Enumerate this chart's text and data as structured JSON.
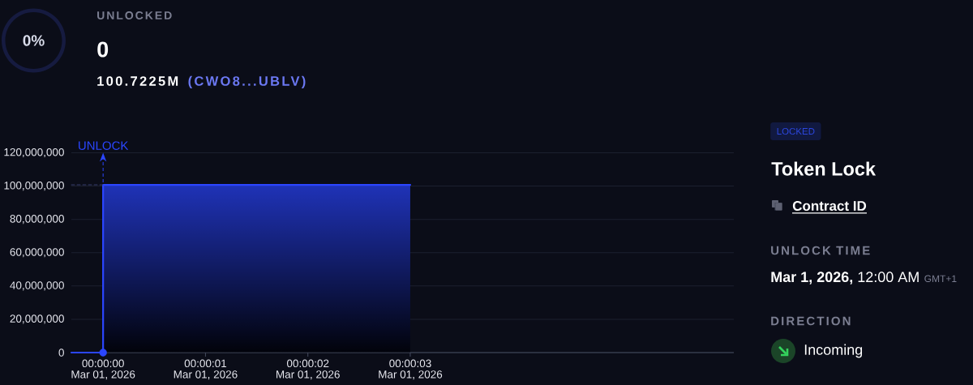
{
  "chart_data": [
    {
      "type": "other",
      "title": "UNLOCKED",
      "annotations": [
        "0%",
        "0",
        "100.7225M",
        "(CWO8...UBLV)"
      ]
    },
    {
      "type": "area",
      "series": [
        {
          "type": "line",
          "color": "#2b46ff",
          "x": [
            "2026-02-28T23:59:59.69",
            "2026-03-01T00:00:00"
          ],
          "values": [
            0,
            0
          ]
        },
        {
          "type": "area",
          "color": "#2b46ff",
          "x": [
            "2026-03-01T00:00:00",
            "2026-03-01T00:00:00",
            "2026-03-01T00:00:03"
          ],
          "values": [
            0,
            100722500,
            100722500
          ]
        },
        {
          "type": "line",
          "color": "#363d6c",
          "line_style": "dashed",
          "x": [
            "2026-02-28T23:59:59.69",
            "2026-03-01T00:00:00"
          ],
          "values": [
            100722500,
            100722500
          ]
        },
        {
          "type": "scatter",
          "color": "#2b46ff",
          "marker": "circle",
          "x": [
            "2026-03-01T00:00:00"
          ],
          "values": [
            0
          ]
        }
      ],
      "xlim": [
        "2026-02-28T23:59:59.69",
        "2026-03-01T00:00:06.16"
      ],
      "ylim": [
        0,
        120000000
      ],
      "xticks": [
        {
          "value": "2026-03-01T00:00:00",
          "label": "00:00:00\nMar 01, 2026"
        },
        {
          "value": "2026-03-01T00:00:01",
          "label": "00:00:01\nMar 01, 2026"
        },
        {
          "value": "2026-03-01T00:00:02",
          "label": "00:00:02\nMar 01, 2026"
        },
        {
          "value": "2026-03-01T00:00:03",
          "label": "00:00:03\nMar 01, 2026"
        }
      ],
      "yticks": [
        0,
        {
          "value": 20000000,
          "label": "20,000,000"
        },
        {
          "value": 40000000,
          "label": "40,000,000"
        },
        {
          "value": 60000000,
          "label": "60,000,000"
        },
        {
          "value": 80000000,
          "label": "80,000,000"
        },
        {
          "value": 100000000,
          "label": "100,000,000"
        },
        {
          "value": 120000000,
          "label": "120,000,000"
        }
      ],
      "grid": "y",
      "ref_lines": [
        {
          "axis": "x",
          "value": "2026-03-01T00:00:00",
          "label": "UNLOCK",
          "color": "#2b46ff",
          "line_style": "dashed"
        }
      ]
    },
    {
      "type": "other",
      "title": "Token Lock",
      "annotations": [
        "LOCKED",
        "Contract ID",
        "UNLOCK TIME",
        "**Mar 1, 2026,** 12:00 AM",
        "GMT+1",
        "DIRECTION",
        "Incoming"
      ]
    }
  ]
}
